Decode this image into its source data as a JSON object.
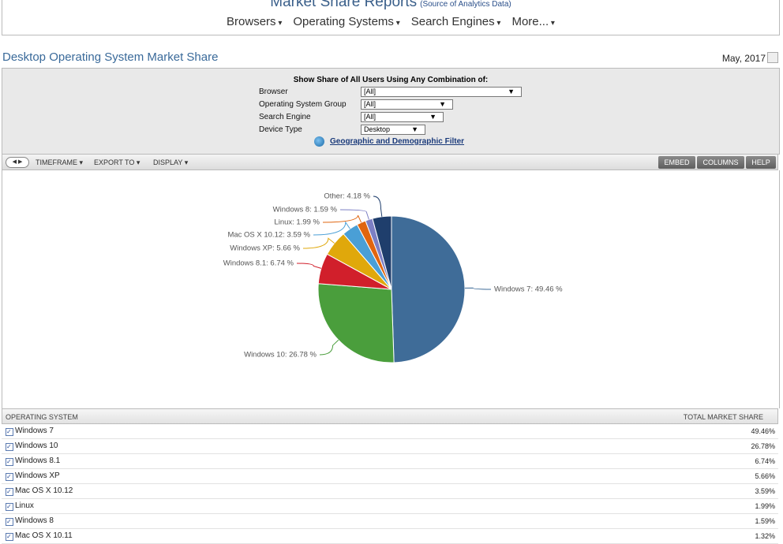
{
  "header": {
    "title": "Market Share Reports",
    "source_link": "(Source of Analytics Data)",
    "nav": [
      "Browsers",
      "Operating Systems",
      "Search Engines",
      "More..."
    ]
  },
  "report": {
    "title": "Desktop Operating System Market Share",
    "date": "May, 2017"
  },
  "filters": {
    "title": "Show Share of All Users Using Any Combination of:",
    "fields": [
      {
        "label": "Browser",
        "value": "[All]"
      },
      {
        "label": "Operating System Group",
        "value": "[All]"
      },
      {
        "label": "Search Engine",
        "value": "[All]"
      },
      {
        "label": "Device Type",
        "value": "Desktop"
      }
    ],
    "link": "Geographic and Demographic Filter"
  },
  "toolbar": {
    "menus": [
      "TIMEFRAME",
      "EXPORT TO",
      "DISPLAY"
    ],
    "buttons": [
      "EMBED",
      "COLUMNS",
      "HELP"
    ]
  },
  "chart_data": {
    "type": "pie",
    "categories": [
      "Windows 7",
      "Windows 10",
      "Windows 8.1",
      "Windows XP",
      "Mac OS X 10.12",
      "Linux",
      "Windows 8",
      "Other"
    ],
    "values": [
      49.46,
      26.78,
      6.74,
      5.66,
      3.59,
      1.99,
      1.59,
      4.18
    ],
    "value_labels": [
      "Windows 7: 49.46 %",
      "Windows 10: 26.78 %",
      "Windows 8.1: 6.74 %",
      "Windows XP: 5.66 %",
      "Mac OS X 10.12: 3.59 %",
      "Linux: 1.99 %",
      "Windows 8: 1.59 %",
      "Other: 4.18 %"
    ],
    "colors": [
      "#3f6c98",
      "#4a9e3c",
      "#d11f2b",
      "#e0a80b",
      "#4a9fd6",
      "#e0650f",
      "#7c7fc4",
      "#1f3e6c"
    ]
  },
  "table": {
    "columns": [
      "OPERATING SYSTEM",
      "TOTAL MARKET SHARE"
    ],
    "rows": [
      [
        "Windows 7",
        "49.46%"
      ],
      [
        "Windows 10",
        "26.78%"
      ],
      [
        "Windows 8.1",
        "6.74%"
      ],
      [
        "Windows XP",
        "5.66%"
      ],
      [
        "Mac OS X 10.12",
        "3.59%"
      ],
      [
        "Linux",
        "1.99%"
      ],
      [
        "Windows 8",
        "1.59%"
      ],
      [
        "Mac OS X 10.11",
        "1.32%"
      ]
    ]
  }
}
